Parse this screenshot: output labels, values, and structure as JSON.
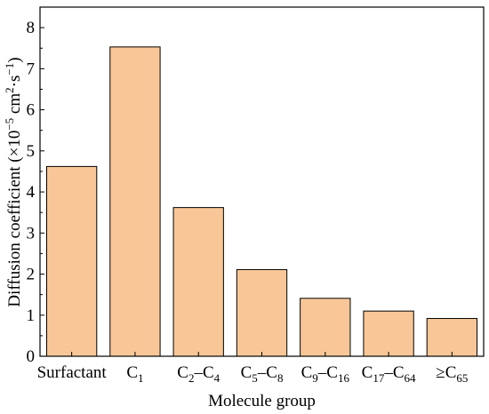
{
  "chart_data": {
    "type": "bar",
    "categories": [
      {
        "base": "Surfactant",
        "sub1": "",
        "mid": "",
        "base2": "",
        "sub2": ""
      },
      {
        "base": "C",
        "sub1": "1",
        "mid": "",
        "base2": "",
        "sub2": ""
      },
      {
        "base": "C",
        "sub1": "2",
        "mid": "–",
        "base2": "C",
        "sub2": "4"
      },
      {
        "base": "C",
        "sub1": "5",
        "mid": "–",
        "base2": "C",
        "sub2": "8"
      },
      {
        "base": "C",
        "sub1": "9",
        "mid": "–",
        "base2": "C",
        "sub2": "16"
      },
      {
        "base": "C",
        "sub1": "17",
        "mid": "–",
        "base2": "C",
        "sub2": "64"
      },
      {
        "base": "≥C",
        "sub1": "65",
        "mid": "",
        "base2": "",
        "sub2": ""
      }
    ],
    "values": [
      4.62,
      7.53,
      3.62,
      2.11,
      1.41,
      1.1,
      0.92
    ],
    "xlabel": "Molecule group",
    "ylabel": {
      "text": "Diffusion coefficient (×10",
      "exp1": "−5",
      "mid": " cm",
      "exp2": "2",
      "mid2": "·s",
      "exp3": "−1",
      "end": ")"
    },
    "ylim": [
      0,
      8.5
    ],
    "yticks": [
      "0",
      "1",
      "2",
      "3",
      "4",
      "5",
      "6",
      "7",
      "8"
    ],
    "bar_color": "#F9C797",
    "bar_edge": "#000000",
    "grid": false,
    "legend": "none"
  }
}
